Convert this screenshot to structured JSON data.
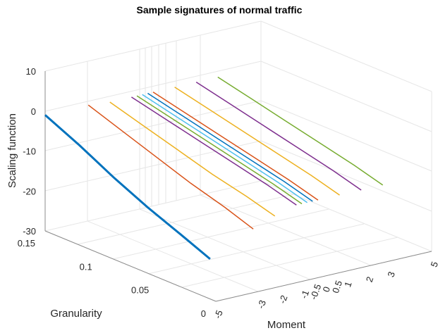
{
  "chart_data": {
    "type": "line",
    "title": "Sample signatures of normal traffic",
    "xlabel": "Moment",
    "ylabel": "Granularity",
    "zlabel": "Scaling function",
    "moment_ticks": [
      "-5",
      "-3",
      "-2",
      "-1",
      "-0.5",
      "0",
      "0.5",
      "1",
      "2",
      "3",
      "5"
    ],
    "granularity_ticks": [
      "0",
      "0.05",
      "0.1",
      "0.15"
    ],
    "z_ticks": [
      "-30",
      "-20",
      "-10",
      "0",
      "10"
    ],
    "zlim": [
      -30,
      10
    ],
    "grid": true,
    "granularity": [
      0.15,
      0.12,
      0.09,
      0.06,
      0.03,
      0.005
    ],
    "series": [
      {
        "moment": -5,
        "color": "#0072bd",
        "values": [
          -1.0,
          -5.0,
          -9.5,
          -13.5,
          -17.0,
          -20.0
        ]
      },
      {
        "moment": -3,
        "color": "#d95319",
        "values": [
          -1.0,
          -4.0,
          -7.0,
          -10.0,
          -12.5,
          -15.0
        ]
      },
      {
        "moment": -2,
        "color": "#edb120",
        "values": [
          -1.5,
          -4.0,
          -6.5,
          -9.0,
          -11.0,
          -13.0
        ]
      },
      {
        "moment": -1,
        "color": "#7e2f8e",
        "values": [
          -1.5,
          -3.5,
          -5.5,
          -7.5,
          -9.5,
          -11.5
        ]
      },
      {
        "moment": -0.75,
        "color": "#77ac30",
        "values": [
          -1.5,
          -3.5,
          -5.5,
          -7.5,
          -9.5,
          -11.5
        ]
      },
      {
        "moment": -0.5,
        "color": "#4dbeee",
        "values": [
          -1.5,
          -3.5,
          -5.5,
          -7.5,
          -9.5,
          -11.5
        ]
      },
      {
        "moment": -0.25,
        "color": "#0072bd",
        "values": [
          -1.5,
          -3.5,
          -5.5,
          -7.5,
          -9.5,
          -11.5
        ]
      },
      {
        "moment": 0,
        "color": "#d95319",
        "values": [
          -1.5,
          -3.5,
          -5.5,
          -7.5,
          -9.5,
          -11.5
        ]
      },
      {
        "moment": 1,
        "color": "#edb120",
        "values": [
          -1.5,
          -3.5,
          -5.5,
          -7.5,
          -9.5,
          -11.5
        ]
      },
      {
        "moment": 2,
        "color": "#7e2f8e",
        "values": [
          -1.5,
          -3.5,
          -5.5,
          -7.5,
          -9.5,
          -11.5
        ]
      },
      {
        "moment": 3,
        "color": "#77ac30",
        "values": [
          -1.5,
          -3.5,
          -5.5,
          -7.5,
          -9.5,
          -11.5
        ]
      }
    ]
  }
}
